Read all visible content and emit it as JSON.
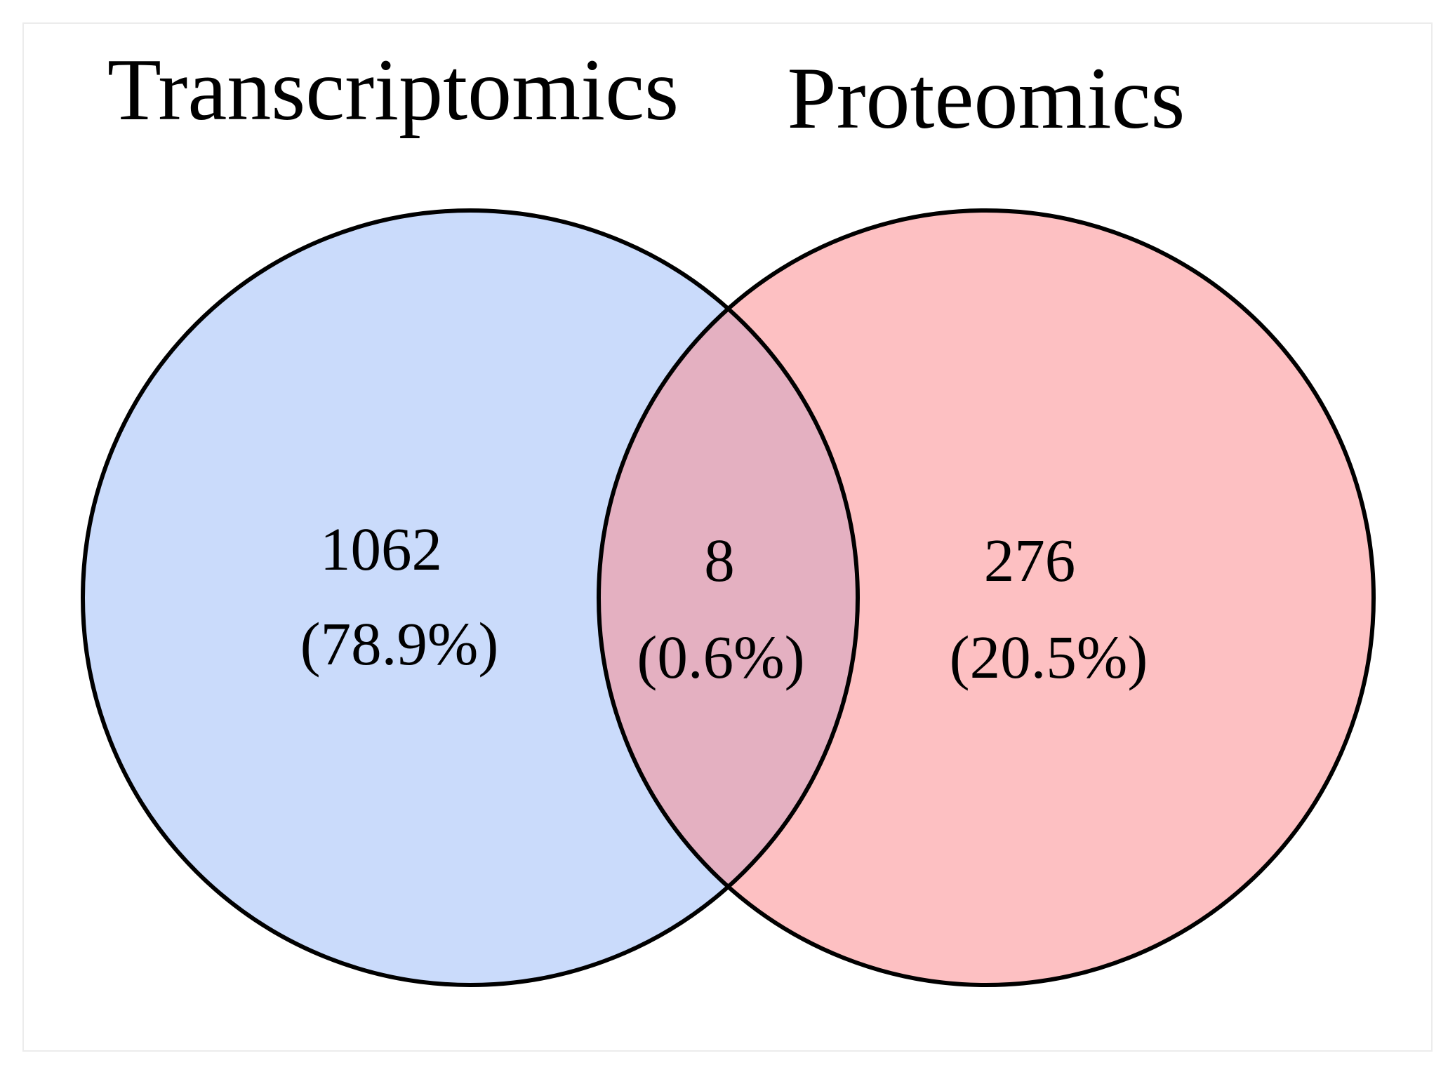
{
  "sets": [
    {
      "id": "transcriptomics",
      "label": "Transcriptomics",
      "color": "#cadbfb"
    },
    {
      "id": "proteomics",
      "label": "Proteomics",
      "color": "#fdc0c2"
    }
  ],
  "overlap_color": "#e4b0c1",
  "regions": {
    "transcriptomics_only": {
      "count": "1062",
      "percent": "(78.9%)"
    },
    "intersection": {
      "count": "8",
      "percent": "(0.6%)"
    },
    "proteomics_only": {
      "count": "276",
      "percent": "(20.5%)"
    }
  }
}
